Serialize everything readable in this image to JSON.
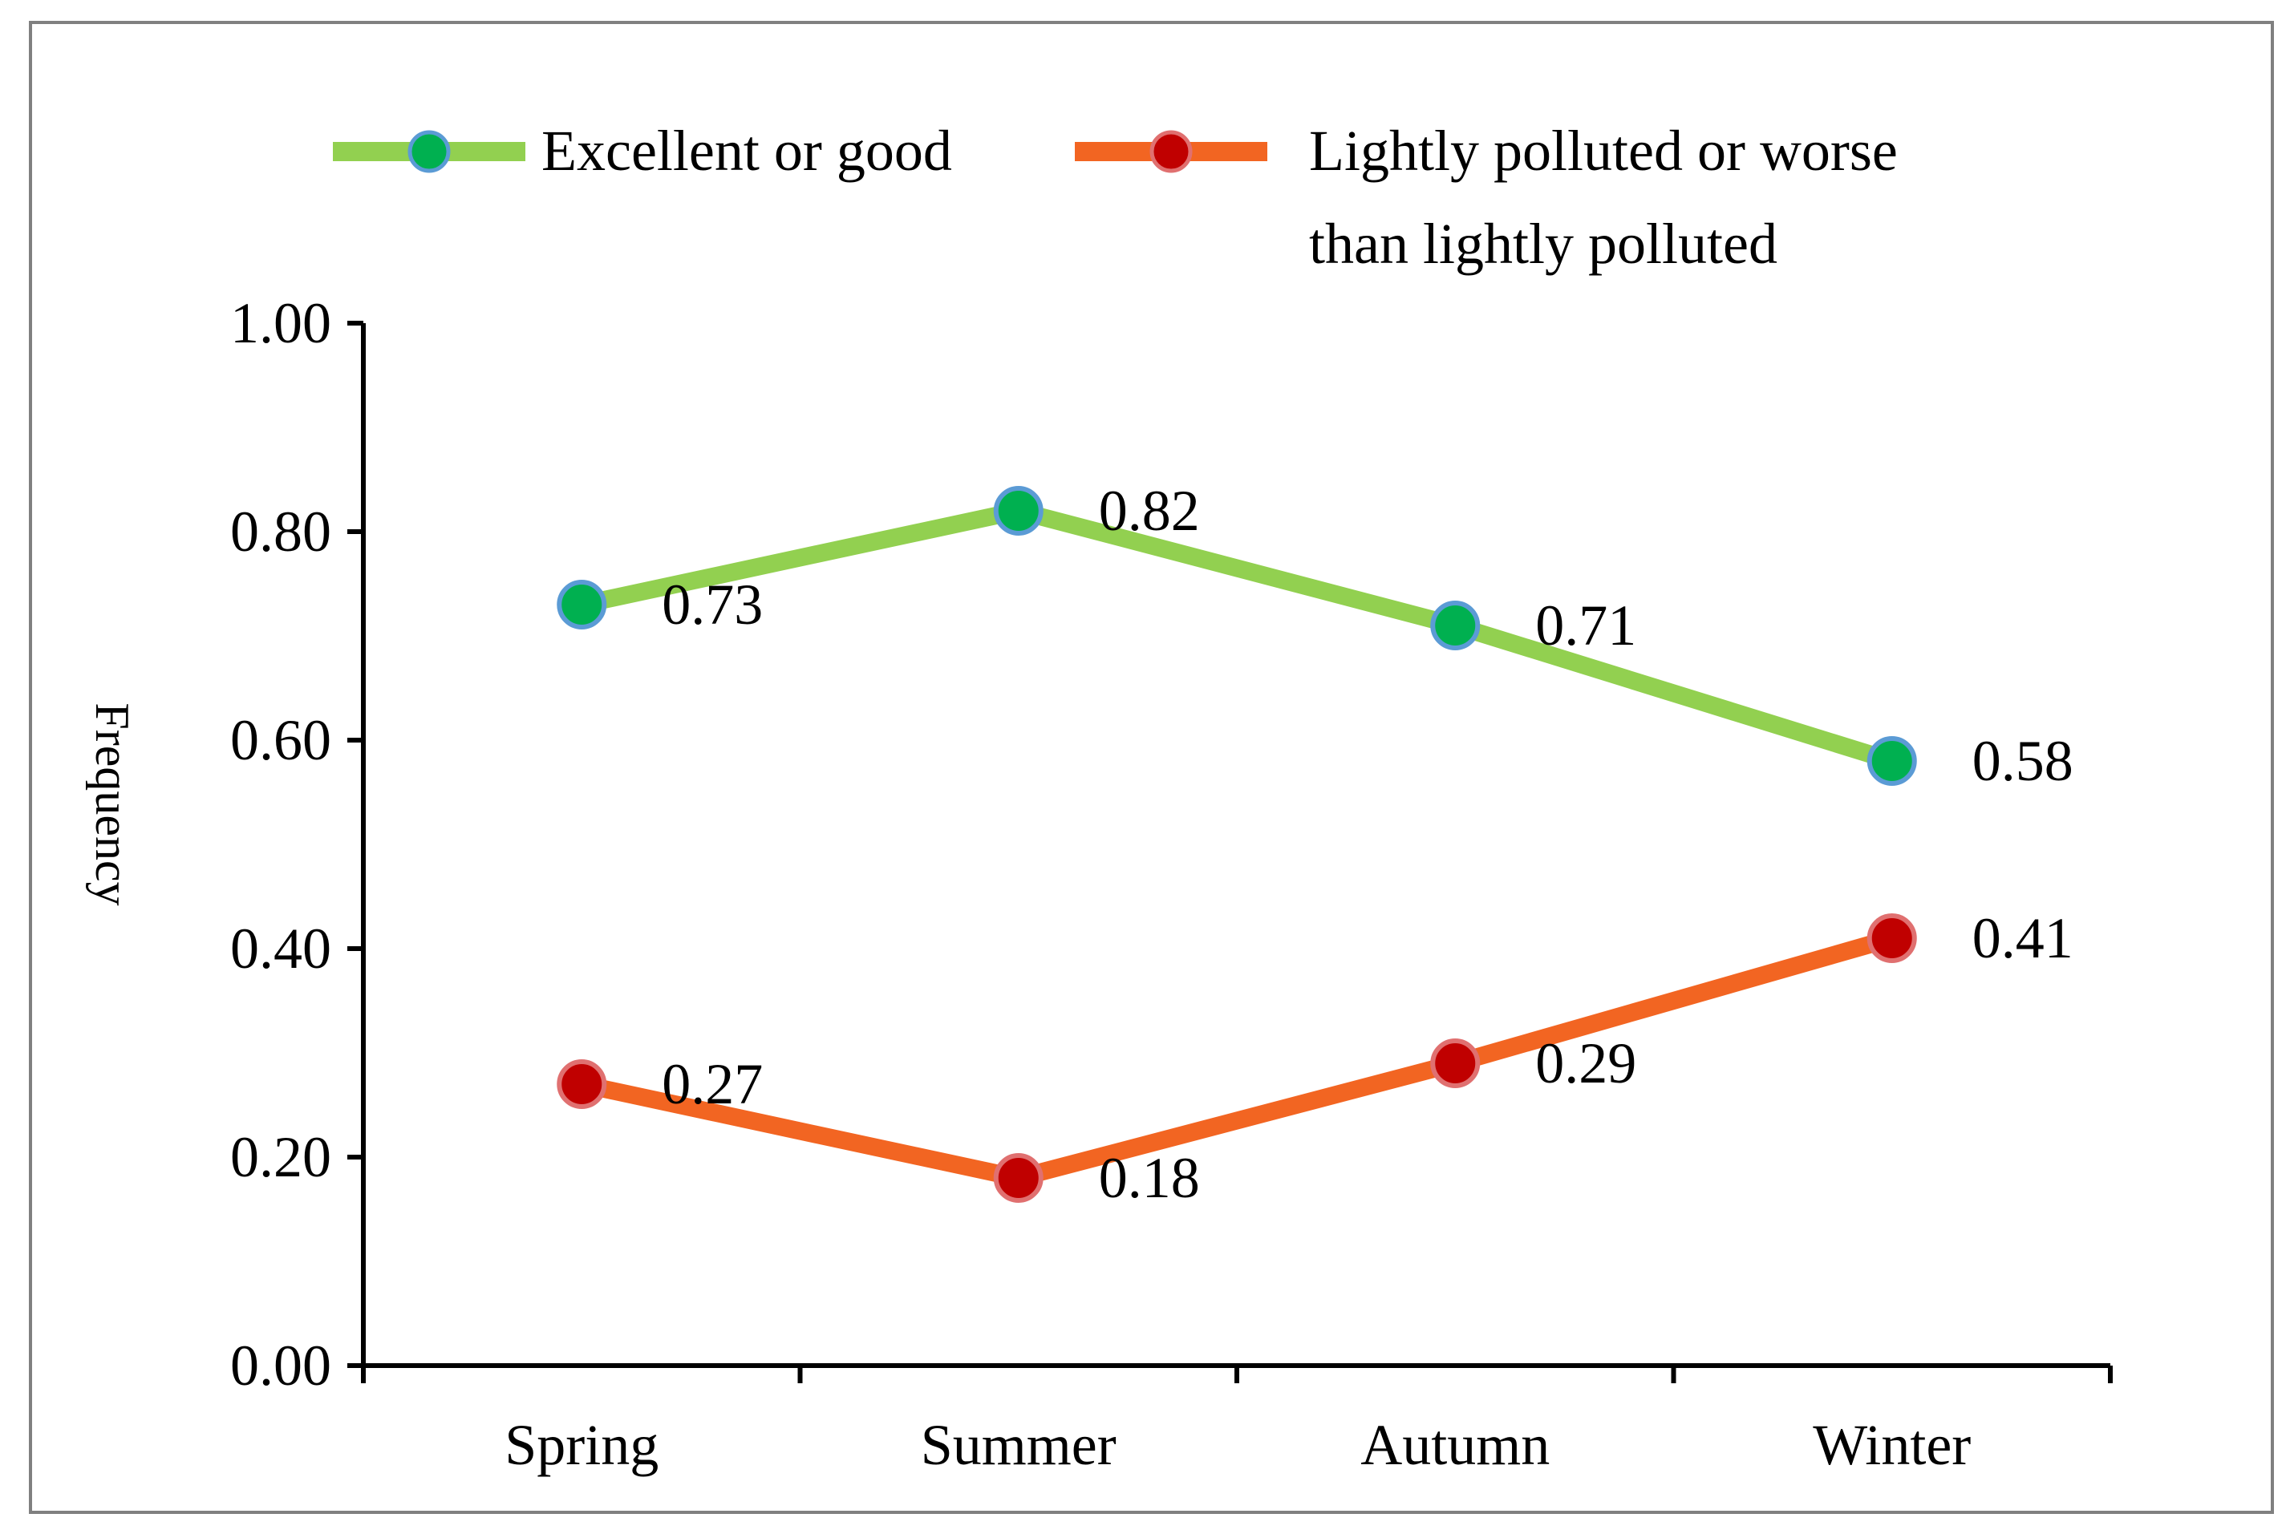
{
  "chart_data": {
    "type": "line",
    "title": "",
    "xlabel": "",
    "ylabel": "Frequency",
    "categories": [
      "Spring",
      "Summer",
      "Autumn",
      "Winter"
    ],
    "ylim": [
      0,
      1
    ],
    "yticks": [
      0,
      0.2,
      0.4,
      0.6,
      0.8,
      1.0
    ],
    "ytick_labels": [
      "0.00",
      "0.20",
      "0.40",
      "0.60",
      "0.80",
      "1.00"
    ],
    "grid": false,
    "legend_position": "top",
    "series": [
      {
        "name": "Excellent or good",
        "legend_lines": [
          "Excellent or good"
        ],
        "values": [
          0.73,
          0.82,
          0.71,
          0.58
        ],
        "value_labels": [
          "0.73",
          "0.82",
          "0.71",
          "0.58"
        ],
        "line_color": "#92d050",
        "marker_color": "#00b050",
        "marker_edge": "#5b9bd5"
      },
      {
        "name": "Lightly polluted or worse than lightly polluted",
        "legend_lines": [
          "Lightly polluted or worse",
          "than lightly polluted"
        ],
        "values": [
          0.27,
          0.18,
          0.29,
          0.41
        ],
        "value_labels": [
          "0.27",
          "0.18",
          "0.29",
          "0.41"
        ],
        "line_color": "#f26522",
        "marker_color": "#c00000",
        "marker_edge": "#e07070"
      }
    ]
  }
}
